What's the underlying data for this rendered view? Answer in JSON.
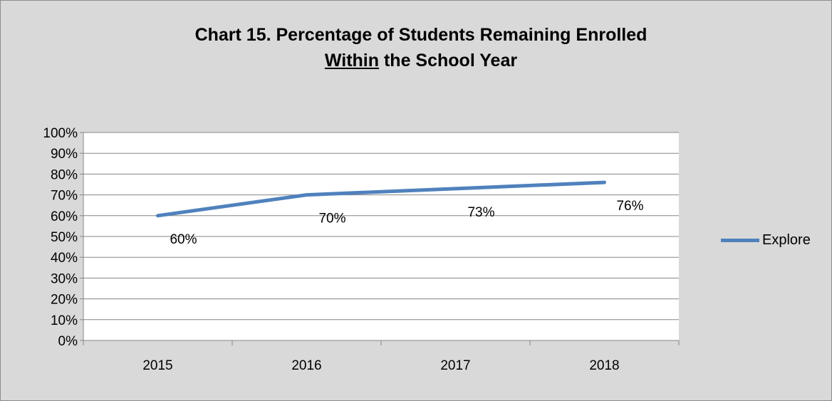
{
  "chart_data": {
    "type": "line",
    "title_line1": "Chart 15. Percentage of Students Remaining Enrolled",
    "title_line2_underlined": "Within",
    "title_line2_rest": " the School Year",
    "xlabel": "",
    "ylabel": "",
    "categories": [
      "2015",
      "2016",
      "2017",
      "2018"
    ],
    "series": [
      {
        "name": "Explore",
        "values": [
          60,
          70,
          73,
          76
        ],
        "labels": [
          "60%",
          "70%",
          "73%",
          "76%"
        ],
        "color": "#4f81bd"
      }
    ],
    "ylim": [
      0,
      100
    ],
    "yticks": [
      "0%",
      "10%",
      "20%",
      "30%",
      "40%",
      "50%",
      "60%",
      "70%",
      "80%",
      "90%",
      "100%"
    ],
    "grid": true,
    "legend_position": "right",
    "colors": {
      "background": "#d9d9d9",
      "plot_area": "#ffffff",
      "gridline": "#868686"
    }
  }
}
